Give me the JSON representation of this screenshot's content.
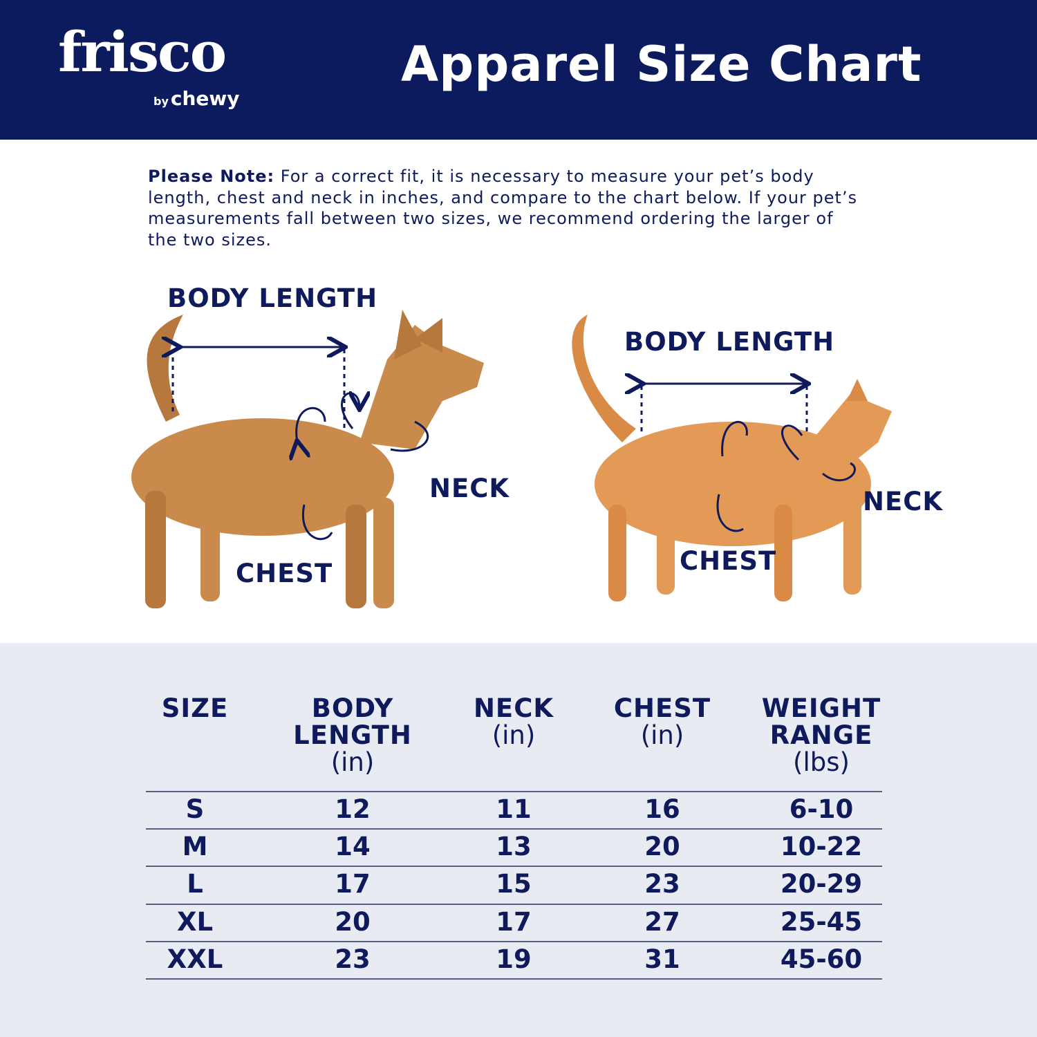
{
  "header": {
    "logo_main": "frisco",
    "logo_by": "by",
    "logo_brand": "chewy",
    "title": "Apparel Size Chart",
    "bg_color": "#0c1a5e"
  },
  "note": {
    "bold": "Please Note:",
    "text": " For a correct fit, it is necessary to measure your pet’s body length, chest and neck in inches, and compare to the chart below. If your pet’s measurements fall between two sizes, we recommend ordering the larger of the two sizes."
  },
  "diagram": {
    "dog": {
      "body_length": "BODY LENGTH",
      "neck": "NECK",
      "chest": "CHEST"
    },
    "cat": {
      "body_length": "BODY LENGTH",
      "neck": "NECK",
      "chest": "CHEST"
    }
  },
  "table": {
    "headers": [
      {
        "main": "SIZE",
        "unit": ""
      },
      {
        "main": "BODY LENGTH",
        "unit": "(in)"
      },
      {
        "main": "NECK",
        "unit": "(in)"
      },
      {
        "main": "CHEST",
        "unit": "(in)"
      },
      {
        "main": "WEIGHT RANGE",
        "unit": "(lbs)"
      }
    ],
    "rows": [
      [
        "S",
        "12",
        "11",
        "16",
        "6-10"
      ],
      [
        "M",
        "14",
        "13",
        "20",
        "10-22"
      ],
      [
        "L",
        "17",
        "15",
        "23",
        "20-29"
      ],
      [
        "XL",
        "20",
        "17",
        "27",
        "25-45"
      ],
      [
        "XXL",
        "23",
        "19",
        "31",
        "45-60"
      ]
    ]
  }
}
